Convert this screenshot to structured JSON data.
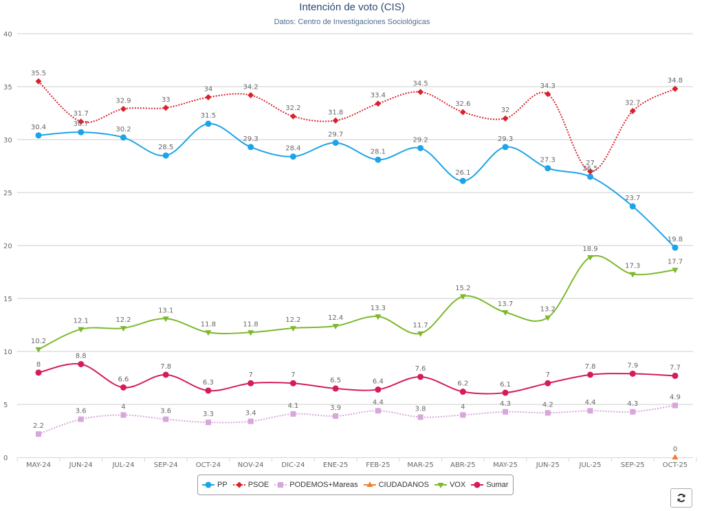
{
  "chart_data": {
    "type": "line",
    "title": "Intención de voto (CIS)",
    "subtitle": "Datos: Centro de Investigaciones Sociológicas",
    "xlabel": "",
    "ylabel": "",
    "ylim": [
      0,
      40
    ],
    "yticks": [
      0,
      5,
      10,
      15,
      20,
      25,
      30,
      35,
      40
    ],
    "grid": true,
    "legend_position": "bottom-center",
    "categories": [
      "MAY-24",
      "JUN-24",
      "JUL-24",
      "SEP-24",
      "OCT-24",
      "NOV-24",
      "DIC-24",
      "ENE-25",
      "FEB-25",
      "MAR-25",
      "ABR-25",
      "MAY-25",
      "JUN-25",
      "JUL-25",
      "SEP-25",
      "OCT-25"
    ],
    "series": [
      {
        "name": "PP",
        "color": "#1ca3e8",
        "marker": "circle",
        "dash": "solid",
        "values": [
          30.4,
          30.7,
          30.2,
          28.5,
          31.5,
          29.3,
          28.4,
          29.7,
          28.1,
          29.2,
          26.1,
          29.3,
          27.3,
          26.5,
          23.7,
          19.8
        ]
      },
      {
        "name": "PSOE",
        "color": "#d9202b",
        "marker": "diamond",
        "dash": "dotted",
        "values": [
          35.5,
          31.7,
          32.9,
          33,
          34,
          34.2,
          32.2,
          31.8,
          33.4,
          34.5,
          32.6,
          32,
          34.3,
          27,
          32.7,
          34.8
        ]
      },
      {
        "name": "PODEMOS+Mareas",
        "color": "#d8a6dc",
        "marker": "square",
        "dash": "dotted",
        "values": [
          2.2,
          3.6,
          4,
          3.6,
          3.3,
          3.4,
          4.1,
          3.9,
          4.4,
          3.8,
          4,
          4.3,
          4.2,
          4.4,
          4.3,
          4.9
        ]
      },
      {
        "name": "CIUDADANOS",
        "color": "#f07f34",
        "marker": "triangle",
        "dash": "solid",
        "values": [
          null,
          null,
          null,
          null,
          null,
          null,
          null,
          null,
          null,
          null,
          null,
          null,
          null,
          null,
          null,
          0
        ]
      },
      {
        "name": "VOX",
        "color": "#7db82a",
        "marker": "triangle-down",
        "dash": "solid",
        "values": [
          10.2,
          12.1,
          12.2,
          13.1,
          11.8,
          11.8,
          12.2,
          12.4,
          13.3,
          11.7,
          15.2,
          13.7,
          13.2,
          18.9,
          17.3,
          17.7
        ]
      },
      {
        "name": "Sumar",
        "color": "#d41b5b",
        "marker": "circle",
        "dash": "solid",
        "values": [
          8,
          8.8,
          6.6,
          7.8,
          6.3,
          7,
          7,
          6.5,
          6.4,
          7.6,
          6.2,
          6.1,
          7,
          7.8,
          7.9,
          7.7
        ]
      }
    ]
  },
  "controls": {
    "refresh_icon": "refresh-icon",
    "refresh_glyph": "⟳"
  }
}
